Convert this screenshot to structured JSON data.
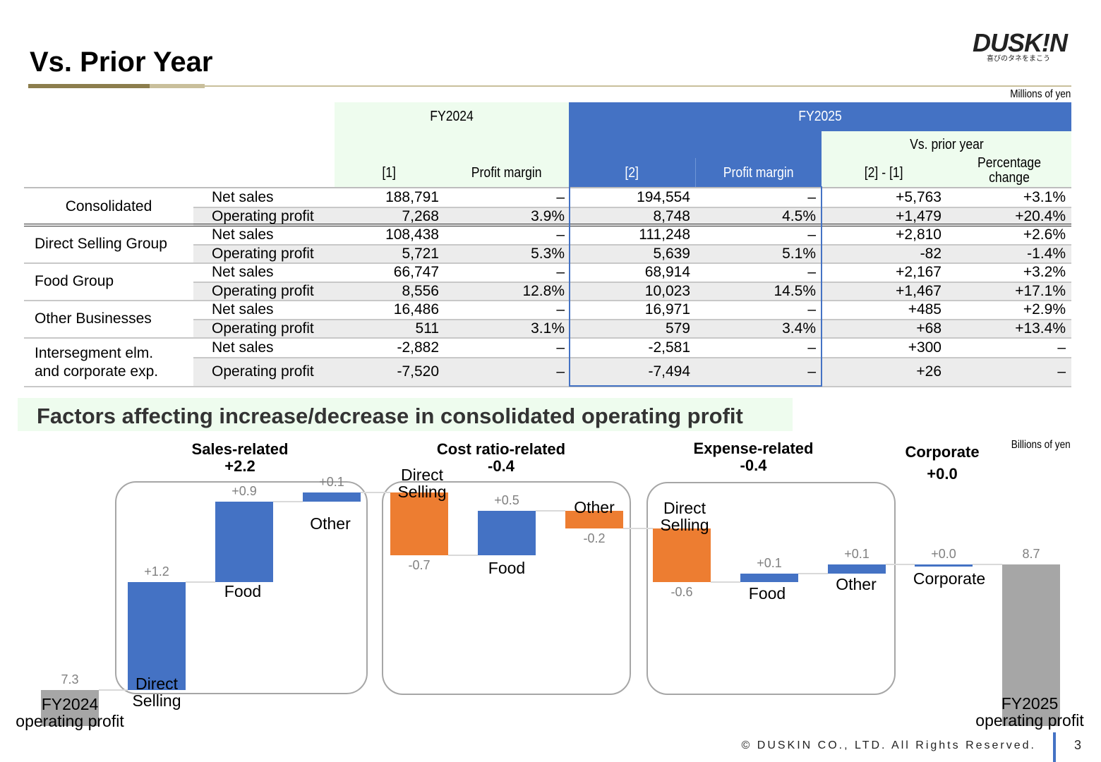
{
  "page": {
    "title": "Vs. Prior Year",
    "logo": {
      "wordmark": "DUSK!N",
      "tagline": "喜びのタネをまこう"
    },
    "page_number": "3",
    "footer": "© DUSKIN CO., LTD. All Rights Reserved."
  },
  "table": {
    "unit": "Millions of yen",
    "headers": {
      "fy2024": "FY2024",
      "fy2025": "FY2025",
      "vs_prior": "Vs. prior year",
      "col1": "[1]",
      "margin1": "Profit margin",
      "col2": "[2]",
      "margin2": "Profit margin",
      "diff": "[2] - [1]",
      "pct": "Percentage change"
    },
    "segments": [
      {
        "name": "Consolidated",
        "rows": [
          {
            "item": "Net sales",
            "fy2024": "188,791",
            "margin1": "–",
            "fy2025": "194,554",
            "margin2": "–",
            "diff": "+5,763",
            "pct": "+3.1%"
          },
          {
            "item": "Operating profit",
            "fy2024": "7,268",
            "margin1": "3.9%",
            "fy2025": "8,748",
            "margin2": "4.5%",
            "diff": "+1,479",
            "pct": "+20.4%"
          }
        ]
      },
      {
        "name": "Direct Selling Group",
        "rows": [
          {
            "item": "Net sales",
            "fy2024": "108,438",
            "margin1": "–",
            "fy2025": "111,248",
            "margin2": "–",
            "diff": "+2,810",
            "pct": "+2.6%"
          },
          {
            "item": "Operating profit",
            "fy2024": "5,721",
            "margin1": "5.3%",
            "fy2025": "5,639",
            "margin2": "5.1%",
            "diff": "-82",
            "pct": "-1.4%"
          }
        ]
      },
      {
        "name": "Food Group",
        "rows": [
          {
            "item": "Net sales",
            "fy2024": "66,747",
            "margin1": "–",
            "fy2025": "68,914",
            "margin2": "–",
            "diff": "+2,167",
            "pct": "+3.2%"
          },
          {
            "item": "Operating profit",
            "fy2024": "8,556",
            "margin1": "12.8%",
            "fy2025": "10,023",
            "margin2": "14.5%",
            "diff": "+1,467",
            "pct": "+17.1%"
          }
        ]
      },
      {
        "name": "Other Businesses",
        "rows": [
          {
            "item": "Net sales",
            "fy2024": "16,486",
            "margin1": "–",
            "fy2025": "16,971",
            "margin2": "–",
            "diff": "+485",
            "pct": "+2.9%"
          },
          {
            "item": "Operating profit",
            "fy2024": "511",
            "margin1": "3.1%",
            "fy2025": "579",
            "margin2": "3.4%",
            "diff": "+68",
            "pct": "+13.4%"
          }
        ]
      },
      {
        "name_line1": "Intersegment elm.",
        "name_line2": "and corporate exp.",
        "rows": [
          {
            "item": "Net sales",
            "fy2024": "-2,882",
            "margin1": "–",
            "fy2025": "-2,581",
            "margin2": "–",
            "diff": "+300",
            "pct": "–"
          },
          {
            "item": "Operating profit",
            "fy2024": "-7,520",
            "margin1": "–",
            "fy2025": "-7,494",
            "margin2": "–",
            "diff": "+26",
            "pct": "–"
          }
        ]
      }
    ]
  },
  "factors": {
    "title": "Factors affecting increase/decrease in consolidated operating profit",
    "unit": "Billions of yen",
    "groups": [
      {
        "label": "Sales-related",
        "total": "+2.2"
      },
      {
        "label": "Cost ratio-related",
        "total": "-0.4"
      },
      {
        "label": "Expense-related",
        "total": "-0.4"
      },
      {
        "label": "Corporate",
        "total": "+0.0"
      }
    ]
  },
  "chart_data": {
    "type": "bar",
    "subtype": "waterfall",
    "unit": "Billions of yen",
    "bars": [
      {
        "label1": "FY2024",
        "label2": "operating profit",
        "kind": "total",
        "value": 7.3,
        "value_label": "7.3"
      },
      {
        "label1": "Direct",
        "label2": "Selling",
        "group": "Sales-related",
        "kind": "increase",
        "value": 1.2,
        "value_label": "+1.2"
      },
      {
        "label1": "Food",
        "label2": "",
        "group": "Sales-related",
        "kind": "increase",
        "value": 0.9,
        "value_label": "+0.9"
      },
      {
        "label1": "Other",
        "label2": "",
        "group": "Sales-related",
        "kind": "increase",
        "value": 0.1,
        "value_label": "+0.1"
      },
      {
        "label1": "Direct",
        "label2": "Selling",
        "group": "Cost ratio-related",
        "kind": "decrease",
        "value": -0.7,
        "value_label": "-0.7"
      },
      {
        "label1": "Food",
        "label2": "",
        "group": "Cost ratio-related",
        "kind": "increase",
        "value": 0.5,
        "value_label": "+0.5"
      },
      {
        "label1": "Other",
        "label2": "",
        "group": "Cost ratio-related",
        "kind": "decrease",
        "value": -0.2,
        "value_label": "-0.2"
      },
      {
        "label1": "Direct",
        "label2": "Selling",
        "group": "Expense-related",
        "kind": "decrease",
        "value": -0.6,
        "value_label": "-0.6"
      },
      {
        "label1": "Food",
        "label2": "",
        "group": "Expense-related",
        "kind": "increase",
        "value": 0.1,
        "value_label": "+0.1"
      },
      {
        "label1": "Other",
        "label2": "",
        "group": "Expense-related",
        "kind": "increase",
        "value": 0.1,
        "value_label": "+0.1"
      },
      {
        "label1": "Corporate",
        "label2": "",
        "group": "Corporate",
        "kind": "increase",
        "value": 0.0,
        "value_label": "+0.0"
      },
      {
        "label1": "FY2025",
        "label2": "operating profit",
        "kind": "total",
        "value": 8.7,
        "value_label": "8.7"
      }
    ],
    "colors": {
      "increase": "#4472c4",
      "decrease": "#ed7d31",
      "total": "#a6a6a6"
    }
  }
}
